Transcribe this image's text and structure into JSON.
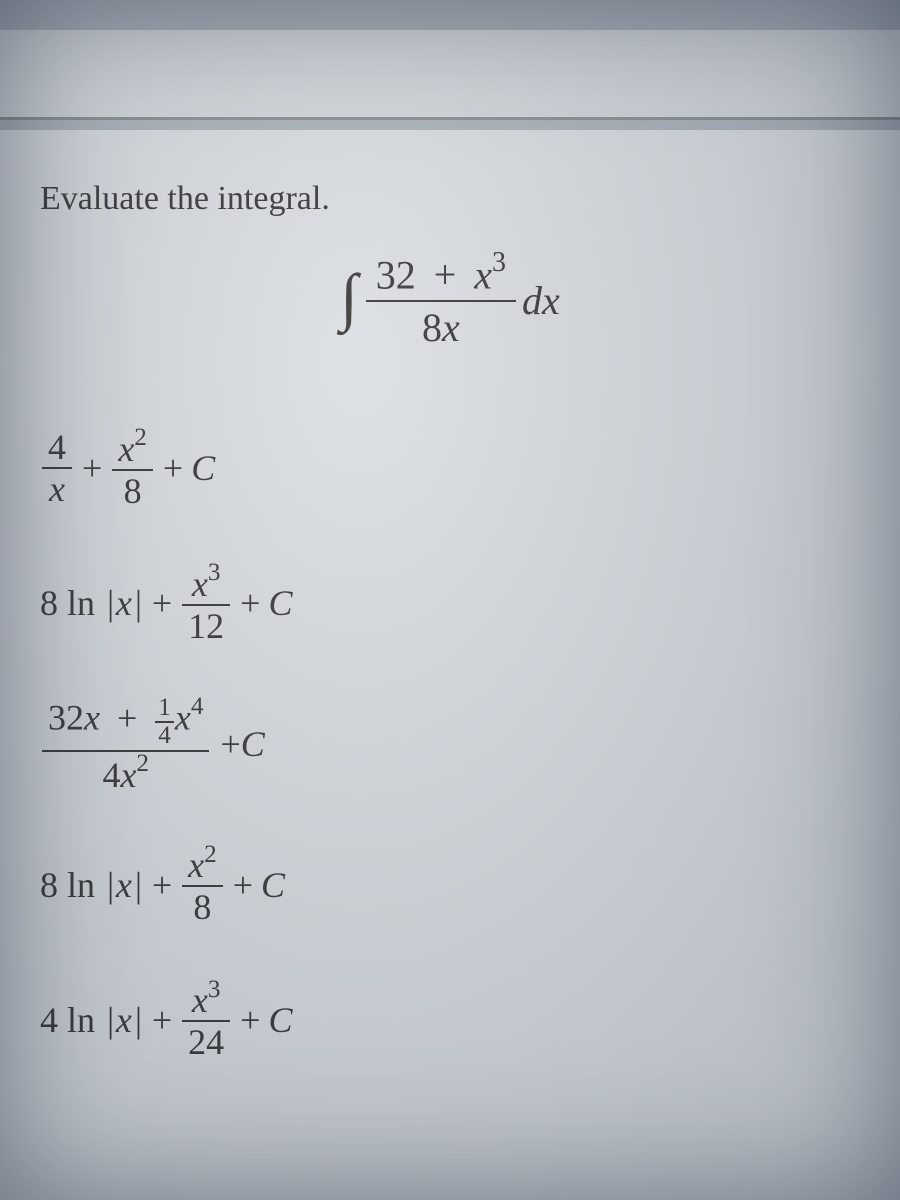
{
  "colors": {
    "background": "#a8b0b8",
    "frame": "#d4d8dc",
    "content_bg": "#d8dce0",
    "text": "#2a2a2a",
    "rule": "#2a2a2a"
  },
  "typography": {
    "prompt_fontsize": 34,
    "integral_fontsize": 40,
    "option_fontsize": 36,
    "font_family": "Georgia, Times New Roman, serif"
  },
  "question": {
    "prompt": "Evaluate the integral.",
    "integral": {
      "numerator_const": "32",
      "numerator_var": "x",
      "numerator_exp": "3",
      "denominator_coeff": "8",
      "denominator_var": "x",
      "differential": "dx"
    }
  },
  "options": [
    {
      "type": "sum-of-fracs",
      "term1": {
        "num": "4",
        "den_var": "x"
      },
      "term2": {
        "num_var": "x",
        "num_exp": "2",
        "den": "8"
      },
      "tail": "C"
    },
    {
      "type": "ln-plus-frac",
      "ln_coeff": "8",
      "ln_arg": "x",
      "frac": {
        "num_var": "x",
        "num_exp": "3",
        "den": "12"
      },
      "tail": "C"
    },
    {
      "type": "big-frac",
      "num_a_coeff": "32",
      "num_a_var": "x",
      "num_b_frac_num": "1",
      "num_b_frac_den": "4",
      "num_b_var": "x",
      "num_b_exp": "4",
      "den_coeff": "4",
      "den_var": "x",
      "den_exp": "2",
      "tail": "C"
    },
    {
      "type": "ln-plus-frac",
      "ln_coeff": "8",
      "ln_arg": "x",
      "frac": {
        "num_var": "x",
        "num_exp": "2",
        "den": "8"
      },
      "tail": "C"
    },
    {
      "type": "ln-plus-frac",
      "ln_coeff": "4",
      "ln_arg": "x",
      "frac": {
        "num_var": "x",
        "num_exp": "3",
        "den": "24"
      },
      "tail": "C"
    }
  ]
}
